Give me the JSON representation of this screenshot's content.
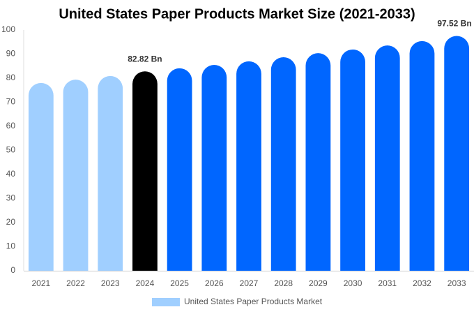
{
  "chart_data": {
    "type": "bar",
    "title": "United States Paper Products Market Size (2021-2033)",
    "categories": [
      "2021",
      "2022",
      "2023",
      "2024",
      "2025",
      "2026",
      "2027",
      "2028",
      "2029",
      "2030",
      "2031",
      "2032",
      "2033"
    ],
    "series": [
      {
        "name": "United States Paper Products Market",
        "color": "#a0cfff",
        "colors": [
          "#a0cfff",
          "#a0cfff",
          "#a0cfff",
          "#000000",
          "#0066ff",
          "#0066ff",
          "#0066ff",
          "#0066ff",
          "#0066ff",
          "#0066ff",
          "#0066ff",
          "#0066ff",
          "#0066ff"
        ],
        "values": [
          78,
          79.4,
          80.9,
          82.82,
          84.1,
          85.5,
          87,
          88.7,
          90.4,
          91.9,
          93.6,
          95.4,
          97.52
        ],
        "value_labels": [
          null,
          null,
          null,
          "82.82 Bn",
          null,
          null,
          null,
          null,
          null,
          null,
          null,
          null,
          "97.52 Bn"
        ]
      }
    ],
    "ylim": [
      0,
      100
    ],
    "yticks": [
      0,
      10,
      20,
      30,
      40,
      50,
      60,
      70,
      80,
      90,
      100
    ],
    "grid": false
  }
}
